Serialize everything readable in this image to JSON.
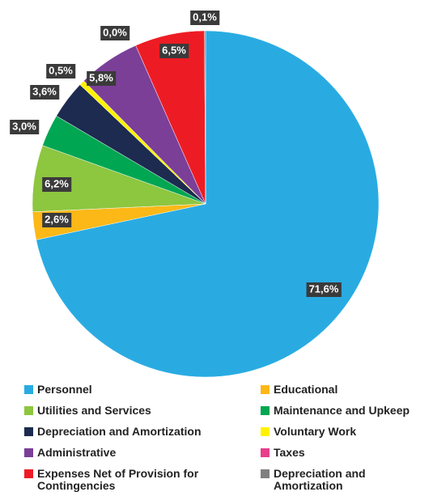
{
  "chart_data": {
    "type": "pie",
    "categories": [
      "Personnel",
      "Educational",
      "Utilities and Services",
      "Maintenance and Upkeep",
      "Depreciation and Amortization",
      "Voluntary Work",
      "Administrative",
      "Taxes",
      "Expenses Net of Provision for Contingencies",
      "Depreciation and Amortization"
    ],
    "values": [
      71.6,
      2.6,
      6.2,
      3.0,
      3.6,
      0.5,
      5.8,
      0.0,
      6.5,
      0.1
    ],
    "value_labels": [
      "71,6%",
      "2,6%",
      "6,2%",
      "3,0%",
      "3,6%",
      "0,5%",
      "5,8%",
      "0,0%",
      "6,5%",
      "0,1%"
    ],
    "colors": [
      "#29abe2",
      "#fbb817",
      "#8dc63f",
      "#00a651",
      "#1c2b4f",
      "#fff200",
      "#7b3f98",
      "#e83e8c",
      "#ed1c24",
      "#808080"
    ],
    "legend": "bottom"
  }
}
